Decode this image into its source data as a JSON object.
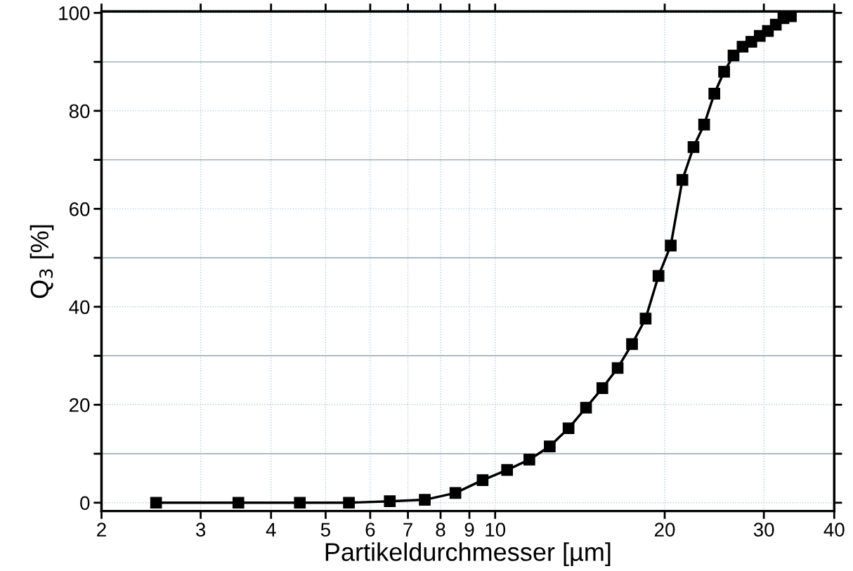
{
  "chart_data": {
    "type": "line",
    "xlabel": "Partikeldurchmesser [µm]",
    "ylabel": "Q$_{3}$ [%]",
    "log": "x",
    "grid": true,
    "marker": "square",
    "line_style": "solid",
    "x": [
      2.5,
      3.5,
      4.5,
      5.5,
      6.5,
      7.5,
      8.5,
      9.5,
      10.5,
      11.5,
      12.5,
      13.5,
      14.5,
      15.5,
      16.5,
      17.5,
      18.5,
      19.5,
      20.5,
      21.5,
      22.5,
      23.5,
      24.5,
      25.5,
      26.5,
      27.5,
      28.5,
      29.5,
      30.5,
      31.5,
      32.5,
      33.5
    ],
    "series": [
      {
        "color": "#000000",
        "values": [
          0,
          0,
          0,
          0,
          0.3,
          0.6,
          2.0,
          4.6,
          6.7,
          8.8,
          11.5,
          15.2,
          19.4,
          23.4,
          27.5,
          32.4,
          37.6,
          46.3,
          52.5,
          65.9,
          72.6,
          77.2,
          83.5,
          88.0,
          91.3,
          93.1,
          94.1,
          95.3,
          96.3,
          97.6,
          98.9,
          99.3
        ]
      }
    ],
    "xlim": [
      2,
      40
    ],
    "xticks": [
      2,
      3,
      4,
      5,
      6,
      7,
      8,
      9,
      10,
      20,
      30,
      40
    ],
    "ylim": [
      -1.7,
      100.3
    ],
    "yticks": [
      0,
      {
        "value": 10,
        "label": null
      },
      20,
      {
        "value": 30,
        "label": null
      },
      40,
      {
        "value": 50,
        "label": null
      },
      60,
      {
        "value": 70,
        "label": null
      },
      80,
      {
        "value": 90,
        "label": null
      },
      100
    ]
  }
}
